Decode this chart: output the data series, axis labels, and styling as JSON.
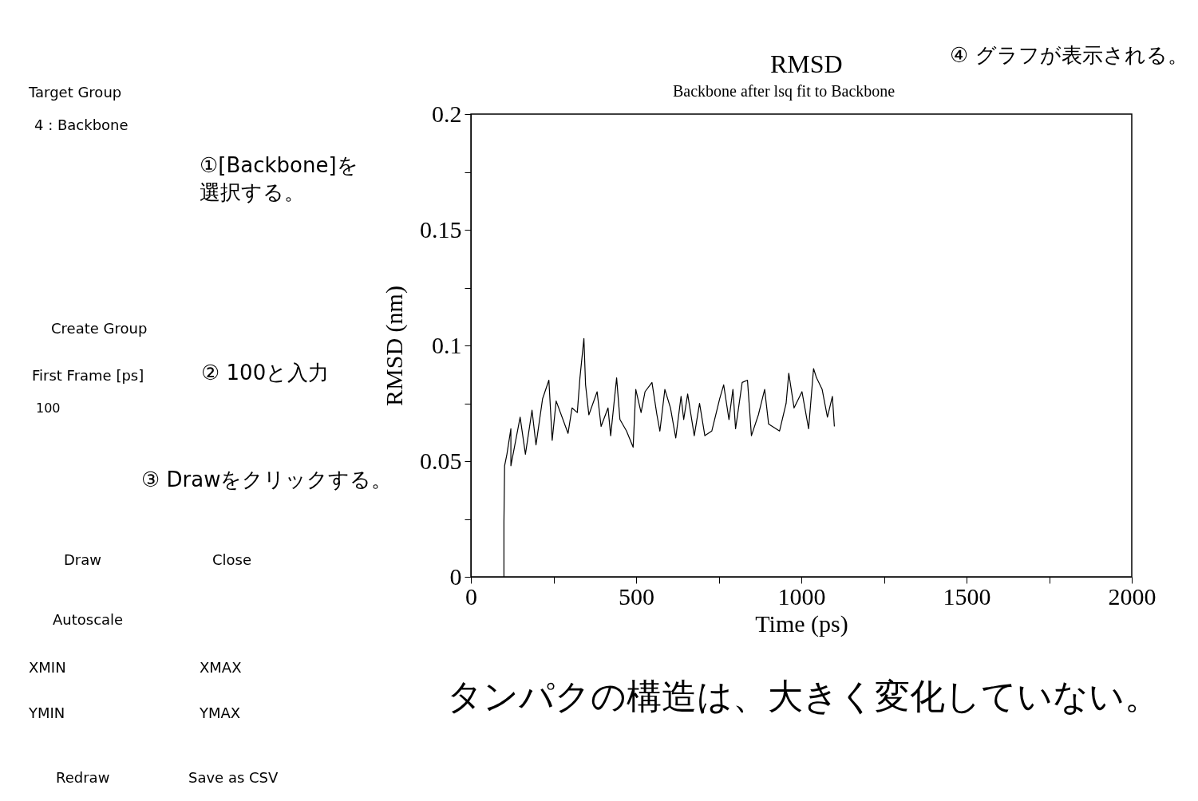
{
  "chart_data": {
    "type": "line",
    "title": "RMSD",
    "subtitle": "Backbone after lsq fit to Backbone",
    "xlabel": "Time (ps)",
    "ylabel": "RMSD (nm)",
    "x": [
      100,
      100,
      102,
      109,
      121,
      121,
      149,
      165,
      185,
      197,
      217,
      236,
      246,
      258,
      294,
      306,
      322,
      330,
      342,
      347,
      357,
      382,
      394,
      415,
      423,
      441,
      451,
      471,
      491,
      499,
      515,
      527,
      548,
      563,
      572,
      587,
      604,
      620,
      636,
      644,
      656,
      676,
      692,
      708,
      729,
      753,
      765,
      781,
      793,
      801,
      821,
      837,
      849,
      870,
      889,
      901,
      934,
      954,
      962,
      978,
      1002,
      1022,
      1037,
      1046,
      1063,
      1079,
      1094,
      1100
    ],
    "series": [
      {
        "color": "#000000",
        "values": [
          0,
          0.024,
          0.048,
          0.053,
          0.064,
          0.048,
          0.069,
          0.053,
          0.072,
          0.057,
          0.077,
          0.085,
          0.059,
          0.076,
          0.062,
          0.073,
          0.071,
          0.086,
          0.103,
          0.083,
          0.07,
          0.08,
          0.065,
          0.073,
          0.061,
          0.086,
          0.068,
          0.063,
          0.056,
          0.081,
          0.071,
          0.08,
          0.084,
          0.07,
          0.063,
          0.081,
          0.073,
          0.06,
          0.078,
          0.068,
          0.079,
          0.061,
          0.075,
          0.061,
          0.063,
          0.077,
          0.083,
          0.068,
          0.081,
          0.064,
          0.084,
          0.085,
          0.061,
          0.07,
          0.081,
          0.066,
          0.063,
          0.075,
          0.088,
          0.073,
          0.08,
          0.064,
          0.09,
          0.086,
          0.081,
          0.069,
          0.078,
          0.065
        ]
      }
    ],
    "xlim": [
      0,
      2000
    ],
    "xticks": [
      0,
      {
        "value": 250,
        "label": null
      },
      500,
      {
        "value": 750,
        "label": null
      },
      1000,
      {
        "value": 1250,
        "label": null
      },
      1500,
      {
        "value": 1750,
        "label": null
      },
      2000
    ],
    "ylim": [
      0,
      0.2
    ],
    "yticks": [
      0,
      {
        "value": 0.025,
        "label": null
      },
      0.05,
      {
        "value": 0.075,
        "label": null
      },
      0.1,
      {
        "value": 0.125,
        "label": null
      },
      0.15,
      {
        "value": 0.175,
        "label": null
      },
      0.2
    ],
    "grid": false,
    "annotations": [
      "Target Group",
      "4 : Backbone",
      "①[Backbone]を",
      "選択する。",
      "Create Group",
      "First Frame [ps]",
      "100",
      "② 100と入力",
      "③ Drawをクリックする。",
      "Draw",
      "Close",
      "Autoscale",
      "XMIN",
      "XMAX",
      "YMIN",
      "YMAX",
      "Redraw",
      "Save as CSV",
      "④ グラフが表示される。",
      "タンパクの構造は、大きく変化していない。"
    ]
  }
}
